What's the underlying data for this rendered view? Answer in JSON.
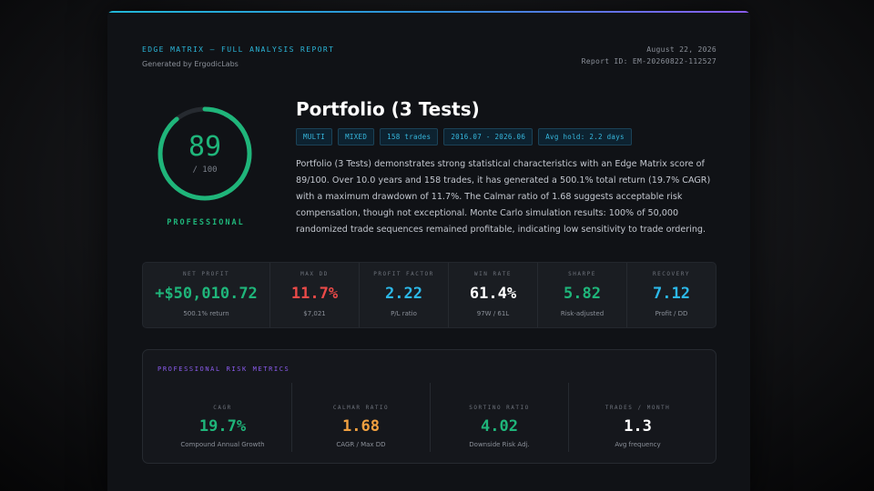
{
  "header": {
    "title": "EDGE MATRIX — FULL ANALYSIS REPORT",
    "generated_by": "Generated by ErgodicLabs",
    "date": "August 22, 2026",
    "report_id": "Report ID: EM-20260822-112527"
  },
  "score": {
    "value": "89",
    "max": "/ 100",
    "fraction": 0.89,
    "grade": "PROFESSIONAL",
    "color": "#1fb57a"
  },
  "portfolio": {
    "title": "Portfolio (3 Tests)",
    "tags": [
      "MULTI",
      "MIXED",
      "158 trades",
      "2016.07 - 2026.06",
      "Avg hold: 2.2 days"
    ],
    "summary": "Portfolio (3 Tests) demonstrates strong statistical characteristics with an Edge Matrix score of 89/100. Over 10.0 years and 158 trades, it has generated a 500.1% total return (19.7% CAGR) with a maximum drawdown of 11.7%. The Calmar ratio of 1.68 suggests acceptable risk compensation, though not exceptional. Monte Carlo simulation results: 100% of 50,000 randomized trade sequences remained profitable, indicating low sensitivity to trade ordering."
  },
  "kpis": [
    {
      "label": "NET PROFIT",
      "value": "+$50,010.72",
      "sub": "500.1% return",
      "color": "#1fb57a"
    },
    {
      "label": "MAX DD",
      "value": "11.7%",
      "sub": "$7,021",
      "color": "#ea4a48"
    },
    {
      "label": "PROFIT FACTOR",
      "value": "2.22",
      "sub": "P/L ratio",
      "color": "#2cb8e8"
    },
    {
      "label": "WIN RATE",
      "value": "61.4%",
      "sub": "97W / 61L",
      "color": "#ffffff"
    },
    {
      "label": "SHARPE",
      "value": "5.82",
      "sub": "Risk-adjusted",
      "color": "#1fb57a"
    },
    {
      "label": "RECOVERY",
      "value": "7.12",
      "sub": "Profit / DD",
      "color": "#2cb8e8"
    }
  ],
  "risk": {
    "title": "PROFESSIONAL RISK METRICS",
    "items": [
      {
        "label": "CAGR",
        "value": "19.7%",
        "sub": "Compound Annual Growth",
        "color": "#1fb57a"
      },
      {
        "label": "CALMAR RATIO",
        "value": "1.68",
        "sub": "CAGR / Max DD",
        "color": "#f0a040"
      },
      {
        "label": "SORTINO RATIO",
        "value": "4.02",
        "sub": "Downside Risk Adj.",
        "color": "#1fb57a"
      },
      {
        "label": "TRADES / MONTH",
        "value": "1.3",
        "sub": "Avg frequency",
        "color": "#ffffff"
      }
    ]
  }
}
